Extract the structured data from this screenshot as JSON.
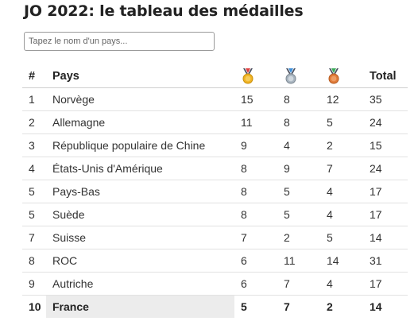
{
  "page": {
    "title": "JO 2022: le tableau des médailles"
  },
  "search": {
    "placeholder": "Tapez le nom d'un pays..."
  },
  "table": {
    "headers": {
      "rank": "#",
      "country": "Pays",
      "gold_icon": "gold-medal-icon",
      "silver_icon": "silver-medal-icon",
      "bronze_icon": "bronze-medal-icon",
      "total": "Total"
    },
    "colors": {
      "gold": "#f0b323",
      "silver": "#a8b4bf",
      "bronze": "#e07b39",
      "ribbon": "#4a5060",
      "highlight_row_bg": "#ececec"
    },
    "rows": [
      {
        "rank": "1",
        "country": "Norvège",
        "gold": "15",
        "silver": "8",
        "bronze": "12",
        "total": "35"
      },
      {
        "rank": "2",
        "country": "Allemagne",
        "gold": "11",
        "silver": "8",
        "bronze": "5",
        "total": "24"
      },
      {
        "rank": "3",
        "country": "République populaire de Chine",
        "gold": "9",
        "silver": "4",
        "bronze": "2",
        "total": "15"
      },
      {
        "rank": "4",
        "country": "États-Unis d'Amérique",
        "gold": "8",
        "silver": "9",
        "bronze": "7",
        "total": "24"
      },
      {
        "rank": "5",
        "country": "Pays-Bas",
        "gold": "8",
        "silver": "5",
        "bronze": "4",
        "total": "17"
      },
      {
        "rank": "5",
        "country": "Suède",
        "gold": "8",
        "silver": "5",
        "bronze": "4",
        "total": "17"
      },
      {
        "rank": "7",
        "country": "Suisse",
        "gold": "7",
        "silver": "2",
        "bronze": "5",
        "total": "14"
      },
      {
        "rank": "8",
        "country": "ROC",
        "gold": "6",
        "silver": "11",
        "bronze": "14",
        "total": "31"
      },
      {
        "rank": "9",
        "country": "Autriche",
        "gold": "6",
        "silver": "7",
        "bronze": "4",
        "total": "17"
      },
      {
        "rank": "10",
        "country": "France",
        "gold": "5",
        "silver": "7",
        "bronze": "2",
        "total": "14",
        "highlighted": true
      }
    ]
  }
}
